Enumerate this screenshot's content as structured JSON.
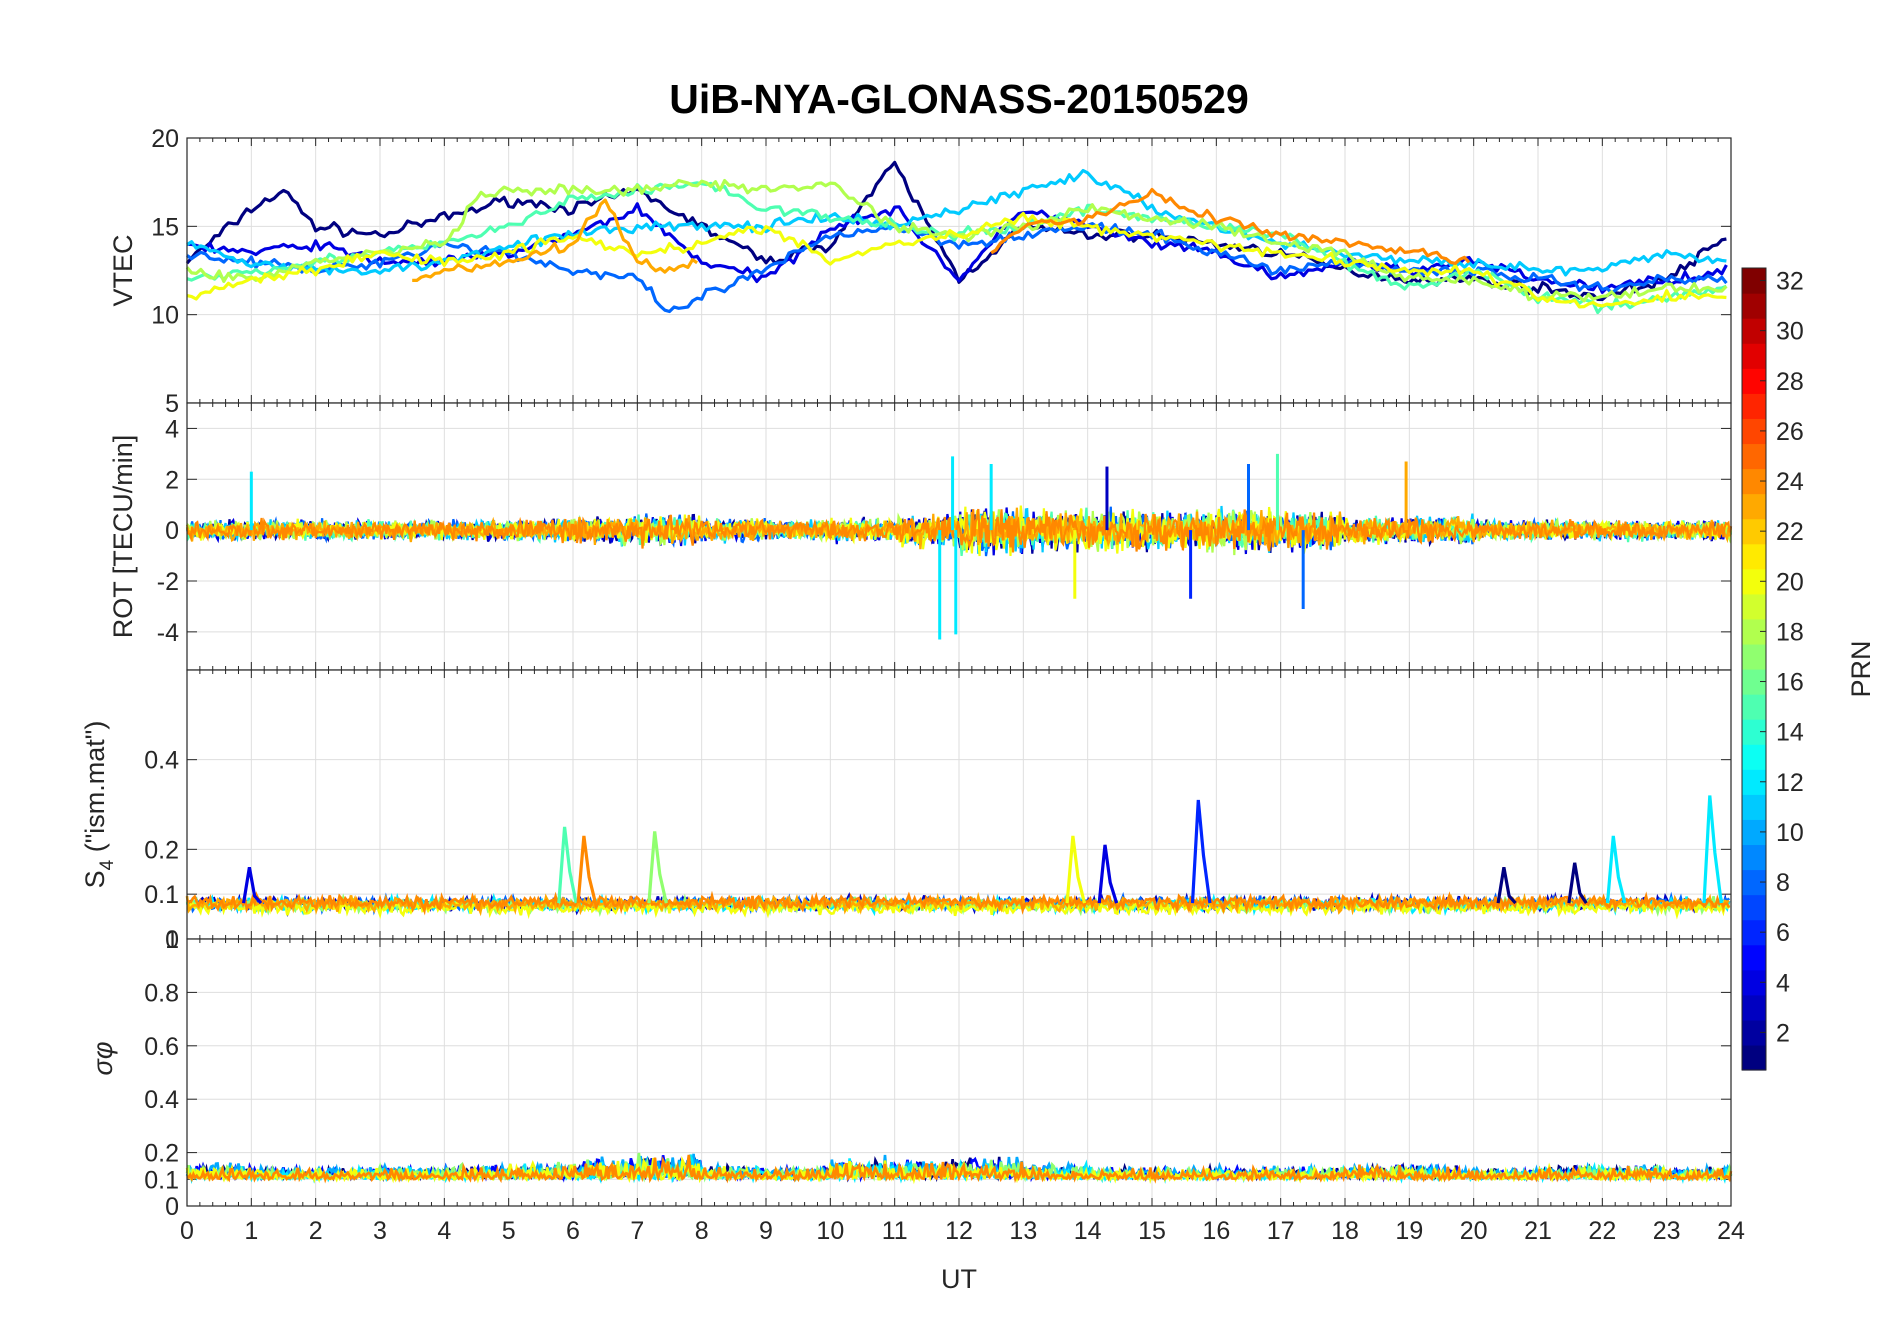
{
  "chart_data": {
    "type": "line",
    "title": "UiB-NYA-GLONASS-20150529",
    "xlabel": "UT",
    "xlim": [
      0,
      24
    ],
    "xticks": [
      "0",
      "1",
      "2",
      "3",
      "4",
      "5",
      "6",
      "7",
      "8",
      "9",
      "10",
      "11",
      "12",
      "13",
      "14",
      "15",
      "16",
      "17",
      "18",
      "19",
      "20",
      "21",
      "22",
      "23",
      "24"
    ],
    "grid": true,
    "panels": [
      {
        "id": "vtec",
        "ylabel": "VTEC",
        "ylim": [
          5,
          20
        ],
        "yticks": [
          "5",
          "10",
          "15",
          "20"
        ],
        "series": [
          {
            "prn": 1,
            "x": [
              0,
              0.5,
              1,
              1.5,
              2,
              3,
              4,
              5,
              6,
              7,
              8,
              9,
              10,
              11,
              12,
              13,
              14,
              15,
              16,
              17,
              18,
              19,
              20,
              21,
              22,
              23,
              24
            ],
            "y": [
              13,
              14.5,
              16,
              17,
              15,
              14.5,
              15.5,
              16.5,
              16,
              17,
              15,
              13,
              14,
              18.5,
              12,
              15,
              14.5,
              14.5,
              14,
              13.5,
              12.5,
              12,
              12,
              11.5,
              11,
              12,
              14.5
            ]
          },
          {
            "prn": 4,
            "x": [
              0,
              1,
              2,
              3,
              4,
              5,
              6,
              7,
              8,
              9,
              10,
              11,
              12,
              13,
              14,
              15,
              16,
              17,
              18,
              19,
              20,
              21,
              22,
              23,
              24
            ],
            "y": [
              14,
              13.5,
              14,
              13,
              13,
              13.5,
              14.5,
              16,
              13,
              12,
              15,
              16,
              12,
              16,
              15,
              14,
              13.5,
              12,
              13,
              12.5,
              13,
              12,
              11.5,
              12,
              12.5
            ]
          },
          {
            "prn": 8,
            "x": [
              0,
              1,
              2,
              3,
              4,
              5,
              6,
              7,
              7.5,
              8,
              9,
              10,
              11,
              12,
              13,
              14,
              15,
              16,
              17,
              18,
              19,
              20,
              21,
              22,
              23,
              24
            ],
            "y": [
              13.5,
              13,
              12.5,
              13,
              14,
              13.5,
              12.5,
              12,
              10,
              11,
              12.5,
              14.5,
              15,
              14,
              14.5,
              15,
              14.5,
              13.5,
              12.5,
              13,
              12.5,
              12.5,
              12,
              11.5,
              12,
              12
            ]
          },
          {
            "prn": 11,
            "x": [
              0,
              1,
              2,
              3,
              4,
              5,
              6,
              7,
              8,
              9,
              10,
              11,
              12,
              13,
              14,
              15,
              16,
              17,
              18,
              19,
              20,
              21,
              22,
              23,
              24
            ],
            "y": [
              14,
              13,
              12.5,
              12.5,
              13,
              14,
              14.5,
              15,
              15,
              15,
              15.5,
              15,
              16,
              17,
              18,
              16,
              15,
              14,
              13.5,
              13,
              13,
              12.5,
              12.5,
              13.5,
              13
            ]
          },
          {
            "prn": 15,
            "x": [
              0,
              1,
              2,
              3,
              4,
              5,
              6,
              7,
              8,
              9,
              10,
              11,
              12,
              13,
              14,
              15,
              16,
              17,
              18,
              19,
              20,
              21,
              22,
              23,
              24
            ],
            "y": [
              12,
              12.5,
              13,
              13.5,
              14,
              15,
              16.5,
              17,
              17.5,
              16,
              15.5,
              15,
              14.5,
              15,
              16,
              15.5,
              15,
              14.5,
              13,
              11.5,
              12.5,
              11,
              10.5,
              11,
              11.5
            ]
          },
          {
            "prn": 18,
            "x": [
              0,
              1,
              2,
              3,
              4,
              4.5,
              5,
              6,
              7,
              8,
              9,
              10,
              11,
              12,
              13,
              14,
              15,
              16,
              17,
              18,
              19,
              20,
              21,
              22,
              23,
              24
            ],
            "y": [
              12.5,
              12,
              13,
              13.5,
              14,
              16.5,
              17,
              17,
              17,
              17.5,
              17,
              17.5,
              15,
              14.5,
              15,
              16,
              15.5,
              15,
              14,
              13.5,
              12,
              12,
              11,
              11,
              11.5,
              11.5
            ]
          },
          {
            "prn": 20,
            "x": [
              0,
              1,
              2,
              3,
              4,
              5,
              6,
              7,
              8,
              9,
              10,
              11,
              12,
              13,
              14,
              15,
              16,
              17,
              18,
              19,
              20,
              21,
              22,
              23,
              24
            ],
            "y": [
              11,
              12,
              12.5,
              13.5,
              13,
              13.5,
              14.5,
              13.5,
              14,
              15,
              13,
              14,
              14.5,
              15.5,
              15,
              14.5,
              14,
              13.5,
              13,
              12.5,
              12.5,
              11,
              10.5,
              11,
              11
            ]
          },
          {
            "prn": 23,
            "x": [
              3.5,
              4,
              5,
              6,
              6.5,
              7,
              7.5,
              8
            ],
            "y": [
              12,
              12.5,
              13,
              14,
              16.5,
              13,
              12.5,
              13
            ]
          },
          {
            "prn": 24,
            "x": [
              12.5,
              13,
              14,
              14.5,
              15,
              15.5,
              16,
              17,
              18,
              19,
              20
            ],
            "y": [
              13.5,
              15,
              15.5,
              16,
              17,
              16,
              15.5,
              14.5,
              14,
              13.5,
              13
            ]
          }
        ]
      },
      {
        "id": "rot",
        "ylabel": "ROT [TECU/min]",
        "ylim": [
          -5.5,
          5
        ],
        "yticks": [
          "-4",
          "-2",
          "0",
          "2",
          "4"
        ],
        "noise_amplitude_by_hour": [
          0.5,
          0.5,
          0.5,
          0.5,
          0.5,
          0.6,
          0.7,
          0.8,
          0.6,
          0.5,
          0.6,
          0.8,
          1.2,
          1.0,
          1.0,
          1.0,
          1.1,
          1.0,
          0.7,
          0.7,
          0.5,
          0.5,
          0.5,
          0.5
        ],
        "spikes": [
          {
            "x": 1.0,
            "y": 2.3,
            "prn": 12
          },
          {
            "x": 11.7,
            "y": -4.3,
            "prn": 12
          },
          {
            "x": 11.95,
            "y": -4.1,
            "prn": 12
          },
          {
            "x": 11.9,
            "y": 2.9,
            "prn": 12
          },
          {
            "x": 12.5,
            "y": 2.6,
            "prn": 12
          },
          {
            "x": 13.8,
            "y": -2.7,
            "prn": 20
          },
          {
            "x": 14.3,
            "y": 2.5,
            "prn": 3
          },
          {
            "x": 15.6,
            "y": -2.7,
            "prn": 6
          },
          {
            "x": 16.5,
            "y": 2.6,
            "prn": 8
          },
          {
            "x": 16.95,
            "y": 3.0,
            "prn": 15
          },
          {
            "x": 17.35,
            "y": -3.1,
            "prn": 8
          },
          {
            "x": 18.95,
            "y": 2.7,
            "prn": 23
          }
        ]
      },
      {
        "id": "s4",
        "ylabel": "S4 (\"ism.mat\")",
        "ylabel_main": "S",
        "ylabel_sub": "4",
        "ylabel_rest": " (\"ism.mat\")",
        "ylim": [
          0,
          0.6
        ],
        "yticks": [
          "0",
          "0.1",
          "0.2",
          "0.4"
        ],
        "baseline": 0.07,
        "spikes": [
          {
            "x": 1.0,
            "y": 0.16,
            "prn": 4
          },
          {
            "x": 5.9,
            "y": 0.25,
            "prn": 15
          },
          {
            "x": 6.2,
            "y": 0.23,
            "prn": 24
          },
          {
            "x": 7.3,
            "y": 0.24,
            "prn": 17
          },
          {
            "x": 13.8,
            "y": 0.23,
            "prn": 20
          },
          {
            "x": 14.3,
            "y": 0.21,
            "prn": 4
          },
          {
            "x": 15.75,
            "y": 0.31,
            "prn": 6
          },
          {
            "x": 22.2,
            "y": 0.23,
            "prn": 12
          },
          {
            "x": 23.7,
            "y": 0.32,
            "prn": 12
          },
          {
            "x": 21.6,
            "y": 0.17,
            "prn": 1
          },
          {
            "x": 20.5,
            "y": 0.16,
            "prn": 1
          }
        ]
      },
      {
        "id": "sigma",
        "ylabel": "σφ",
        "ylim": [
          0,
          1
        ],
        "yticks": [
          "0",
          "0.1",
          "0.2",
          "0.4",
          "0.6",
          "0.8",
          "1"
        ],
        "baseline": 0.12,
        "noise_amplitude_by_hour": [
          0.06,
          0.05,
          0.05,
          0.05,
          0.06,
          0.07,
          0.09,
          0.11,
          0.06,
          0.05,
          0.09,
          0.08,
          0.1,
          0.06,
          0.05,
          0.05,
          0.05,
          0.05,
          0.06,
          0.05,
          0.04,
          0.06,
          0.06,
          0.05
        ]
      }
    ],
    "colorbar": {
      "label": "PRN",
      "min": 1,
      "max": 32,
      "ticks": [
        "2",
        "4",
        "6",
        "8",
        "10",
        "12",
        "14",
        "16",
        "18",
        "20",
        "22",
        "24",
        "26",
        "28",
        "30",
        "32"
      ],
      "colormap": "jet"
    }
  }
}
